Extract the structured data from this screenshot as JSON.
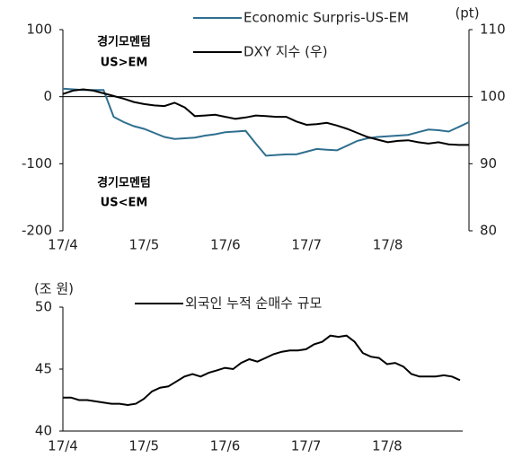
{
  "chart_data": [
    {
      "type": "line",
      "categories": [
        "17/4",
        null,
        null,
        null,
        null,
        null,
        null,
        null,
        "17/5",
        null,
        null,
        null,
        null,
        null,
        null,
        null,
        "17/6",
        null,
        null,
        null,
        null,
        null,
        null,
        null,
        "17/7",
        null,
        null,
        null,
        null,
        null,
        null,
        null,
        "17/8",
        null,
        null,
        null,
        null,
        null,
        null,
        null,
        null
      ],
      "series": [
        {
          "name": "Economic Surpris-US-EM",
          "color": "#2f6f8f",
          "values": [
            12,
            11,
            10,
            10,
            10,
            -30,
            -38,
            -44,
            -48,
            -54,
            -60,
            -63,
            -62,
            -61,
            -58,
            -56,
            -53,
            -52,
            -51,
            -70,
            -88,
            -87,
            -86,
            -86,
            -82,
            -78,
            -79,
            -80,
            -73,
            -66,
            -62,
            -60,
            -59,
            -58,
            -57,
            -53,
            -49,
            -50,
            -52,
            -45,
            -38
          ]
        },
        {
          "name": "DXY 지수 (우)",
          "color": "#000000",
          "axis": "y2",
          "values": [
            100.4,
            100.9,
            101.1,
            100.9,
            100.5,
            100.1,
            99.7,
            99.2,
            98.9,
            98.7,
            98.6,
            99.1,
            98.4,
            97.1,
            97.2,
            97.3,
            97.0,
            96.7,
            96.9,
            97.2,
            97.1,
            97.0,
            97.0,
            96.3,
            95.8,
            95.9,
            96.1,
            95.7,
            95.2,
            94.6,
            94.0,
            93.6,
            93.2,
            93.4,
            93.5,
            93.2,
            93.0,
            93.2,
            92.9,
            92.8,
            92.8
          ]
        }
      ],
      "ylim": [
        -200,
        100
      ],
      "yticks": [
        -200,
        -100,
        0,
        100
      ],
      "y2lim": [
        80,
        110
      ],
      "y2ticks": [
        80,
        90,
        100,
        110
      ],
      "y2label": "(pt)",
      "annotations": [
        "경기모멘텀",
        "US>EM",
        "경기모멘텀",
        "US<EM"
      ]
    },
    {
      "type": "line",
      "categories": [
        "17/4",
        null,
        null,
        null,
        null,
        null,
        null,
        null,
        null,
        null,
        "17/5",
        null,
        null,
        null,
        null,
        null,
        null,
        null,
        null,
        null,
        "17/6",
        null,
        null,
        null,
        null,
        null,
        null,
        null,
        null,
        null,
        "17/7",
        null,
        null,
        null,
        null,
        null,
        null,
        null,
        null,
        null,
        "17/8",
        null,
        null,
        null,
        null,
        null,
        null,
        null,
        null,
        null
      ],
      "series": [
        {
          "name": "외국인 누적 순매수 규모",
          "color": "#000000",
          "values": [
            42.7,
            42.7,
            42.5,
            42.5,
            42.4,
            42.3,
            42.2,
            42.2,
            42.1,
            42.2,
            42.6,
            43.2,
            43.5,
            43.6,
            44.0,
            44.4,
            44.6,
            44.4,
            44.7,
            44.9,
            45.1,
            45.0,
            45.5,
            45.8,
            45.6,
            45.9,
            46.2,
            46.4,
            46.5,
            46.5,
            46.6,
            47.0,
            47.2,
            47.7,
            47.6,
            47.7,
            47.2,
            46.3,
            46.0,
            45.9,
            45.4,
            45.5,
            45.2,
            44.6,
            44.4,
            44.4,
            44.4,
            44.5,
            44.4,
            44.1
          ]
        }
      ],
      "ylim": [
        40,
        50
      ],
      "yticks": [
        40,
        45,
        50
      ],
      "ylabel": "(조 원)"
    }
  ]
}
